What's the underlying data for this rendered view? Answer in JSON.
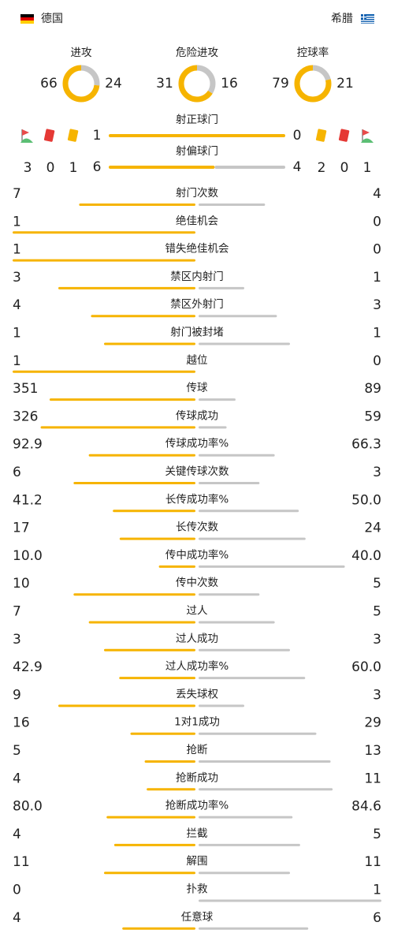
{
  "header": {
    "home": "德国",
    "away": "希腊"
  },
  "summary": [
    {
      "name": "进攻",
      "home": 66,
      "away": 24
    },
    {
      "name": "危险进攻",
      "home": 31,
      "away": 16
    },
    {
      "name": "控球率",
      "home": 79,
      "away": 21
    }
  ],
  "discipline": {
    "home": {
      "corners": 3,
      "red": 0,
      "yellow": 1
    },
    "away": {
      "yellow": 2,
      "red": 0,
      "corners": 1
    }
  },
  "shots": [
    {
      "name": "射正球门",
      "home": 1,
      "away": 0
    },
    {
      "name": "射偏球门",
      "home": 6,
      "away": 4
    }
  ],
  "stats": [
    {
      "name": "射门次数",
      "home": 7,
      "away": 4
    },
    {
      "name": "绝佳机会",
      "home": 1,
      "away": 0
    },
    {
      "name": "错失绝佳机会",
      "home": 1,
      "away": 0
    },
    {
      "name": "禁区内射门",
      "home": 3,
      "away": 1
    },
    {
      "name": "禁区外射门",
      "home": 4,
      "away": 3
    },
    {
      "name": "射门被封堵",
      "home": 1,
      "away": 1
    },
    {
      "name": "越位",
      "home": 1,
      "away": 0
    },
    {
      "name": "传球",
      "home": 351,
      "away": 89
    },
    {
      "name": "传球成功",
      "home": 326,
      "away": 59
    },
    {
      "name": "传球成功率%",
      "home": 92.9,
      "away": 66.3
    },
    {
      "name": "关键传球次数",
      "home": 6,
      "away": 3
    },
    {
      "name": "长传成功率%",
      "home": 41.2,
      "away": 50,
      "away_label": "50.0"
    },
    {
      "name": "长传次数",
      "home": 17,
      "away": 24
    },
    {
      "name": "传中成功率%",
      "home": 10,
      "home_label": "10.0",
      "away": 40,
      "away_label": "40.0"
    },
    {
      "name": "传中次数",
      "home": 10,
      "away": 5
    },
    {
      "name": "过人",
      "home": 7,
      "away": 5
    },
    {
      "name": "过人成功",
      "home": 3,
      "away": 3
    },
    {
      "name": "过人成功率%",
      "home": 42.9,
      "away": 60,
      "away_label": "60.0"
    },
    {
      "name": "丢失球权",
      "home": 9,
      "away": 3
    },
    {
      "name": "1对1成功",
      "home": 16,
      "away": 29
    },
    {
      "name": "抢断",
      "home": 5,
      "away": 13
    },
    {
      "name": "抢断成功",
      "home": 4,
      "away": 11
    },
    {
      "name": "抢断成功率%",
      "home": 80,
      "home_label": "80.0",
      "away": 84.6
    },
    {
      "name": "拦截",
      "home": 4,
      "away": 5
    },
    {
      "name": "解围",
      "home": 11,
      "away": 11
    },
    {
      "name": "扑救",
      "home": 0,
      "away": 1
    },
    {
      "name": "任意球",
      "home": 4,
      "away": 6
    }
  ]
}
